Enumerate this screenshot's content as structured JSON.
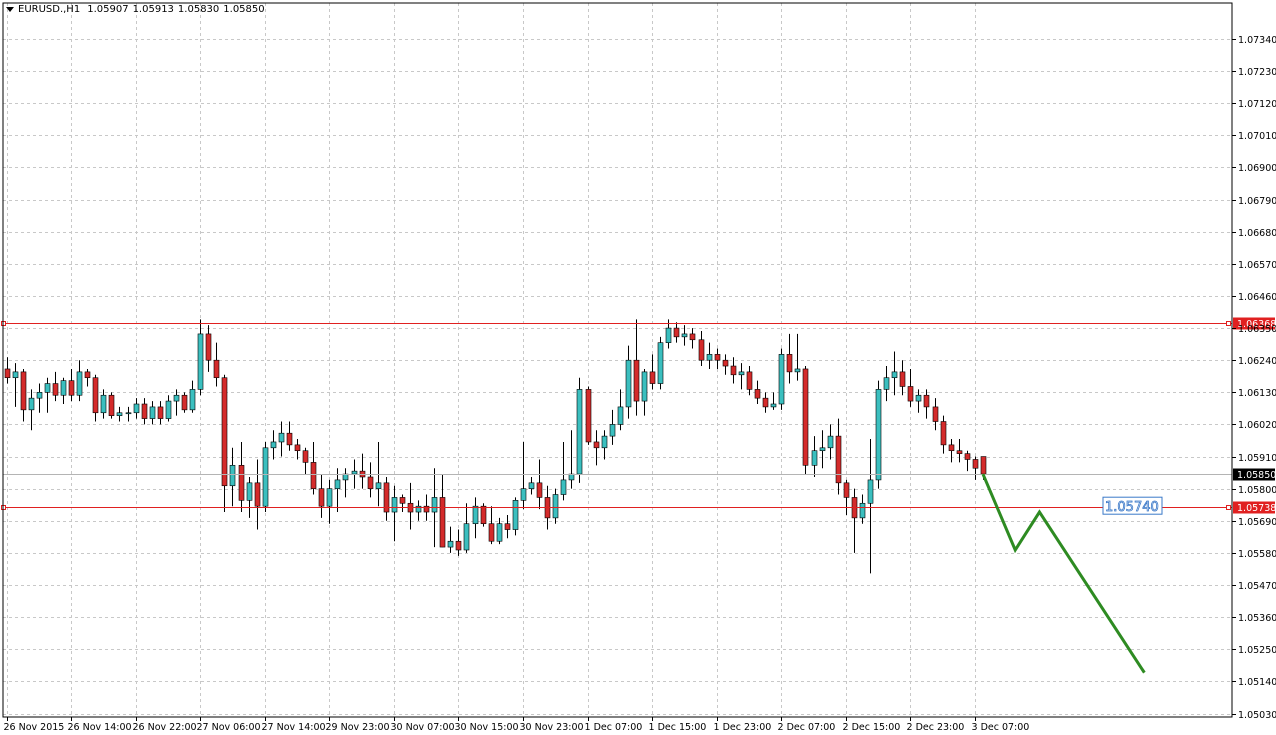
{
  "header": {
    "symbol": "EURUSD.,H1",
    "open": "1.05907",
    "high": "1.05913",
    "low": "1.05830",
    "close": "1.05850"
  },
  "colors": {
    "bull": "#3bbfbf",
    "bear": "#d42b2b",
    "wick": "#000000",
    "grid": "#c8c8c8",
    "level": "#e02020",
    "forecast": "#2e8b22",
    "target_box": "#3a78c8"
  },
  "chart_data": {
    "type": "candlestick",
    "symbol": "EURUSD.",
    "timeframe": "H1",
    "ylim": [
      1.0503,
      1.074
    ],
    "y_ticks": [
      "1.07340",
      "1.07230",
      "1.07120",
      "1.07010",
      "1.06900",
      "1.06790",
      "1.06680",
      "1.06570",
      "1.06460",
      "1.06350",
      "1.06240",
      "1.06130",
      "1.06020",
      "1.05910",
      "1.05800",
      "1.05690",
      "1.05580",
      "1.05470",
      "1.05360",
      "1.05250",
      "1.05140",
      "1.05030"
    ],
    "x_labels": [
      {
        "index": 0,
        "label": "26 Nov 2015"
      },
      {
        "index": 8,
        "label": "26 Nov 14:00"
      },
      {
        "index": 16,
        "label": "26 Nov 22:00"
      },
      {
        "index": 24,
        "label": "27 Nov 06:00"
      },
      {
        "index": 32,
        "label": "27 Nov 14:00"
      },
      {
        "index": 40,
        "label": "29 Nov 23:00"
      },
      {
        "index": 48,
        "label": "30 Nov 07:00"
      },
      {
        "index": 56,
        "label": "30 Nov 15:00"
      },
      {
        "index": 64,
        "label": "30 Nov 23:00"
      },
      {
        "index": 72,
        "label": "1 Dec 07:00"
      },
      {
        "index": 80,
        "label": "1 Dec 15:00"
      },
      {
        "index": 88,
        "label": "1 Dec 23:00"
      },
      {
        "index": 96,
        "label": "2 Dec 07:00"
      },
      {
        "index": 104,
        "label": "2 Dec 15:00"
      },
      {
        "index": 112,
        "label": "2 Dec 23:00"
      },
      {
        "index": 120,
        "label": "3 Dec 07:00"
      }
    ],
    "candles": [
      [
        1.0621,
        1.0625,
        1.0616,
        1.0618
      ],
      [
        1.0618,
        1.0623,
        1.0608,
        1.062
      ],
      [
        1.062,
        1.0621,
        1.0603,
        1.0607
      ],
      [
        1.0607,
        1.0614,
        1.06,
        1.0611
      ],
      [
        1.0611,
        1.0616,
        1.0606,
        1.0613
      ],
      [
        1.0613,
        1.0618,
        1.0606,
        1.0616
      ],
      [
        1.0616,
        1.062,
        1.061,
        1.0612
      ],
      [
        1.0612,
        1.0618,
        1.0609,
        1.0617
      ],
      [
        1.0617,
        1.0621,
        1.061,
        1.0612
      ],
      [
        1.0612,
        1.0624,
        1.061,
        1.062
      ],
      [
        1.062,
        1.0621,
        1.0615,
        1.0618
      ],
      [
        1.0618,
        1.0619,
        1.0603,
        1.0606
      ],
      [
        1.0606,
        1.0614,
        1.0604,
        1.0612
      ],
      [
        1.0612,
        1.0613,
        1.0604,
        1.0605
      ],
      [
        1.0605,
        1.0608,
        1.0603,
        1.0606
      ],
      [
        1.0606,
        1.0608,
        1.0603,
        1.0606
      ],
      [
        1.0606,
        1.0611,
        1.0604,
        1.0609
      ],
      [
        1.0609,
        1.0611,
        1.0602,
        1.0604
      ],
      [
        1.0604,
        1.061,
        1.0602,
        1.0608
      ],
      [
        1.0608,
        1.061,
        1.0602,
        1.0604
      ],
      [
        1.0604,
        1.0612,
        1.0603,
        1.061
      ],
      [
        1.061,
        1.0614,
        1.0605,
        1.0612
      ],
      [
        1.0612,
        1.0613,
        1.0606,
        1.0607
      ],
      [
        1.0607,
        1.0617,
        1.0606,
        1.0614
      ],
      [
        1.0614,
        1.0638,
        1.0612,
        1.0633
      ],
      [
        1.0633,
        1.0636,
        1.062,
        1.0624
      ],
      [
        1.0624,
        1.063,
        1.0615,
        1.0618
      ],
      [
        1.0618,
        1.0619,
        1.0572,
        1.0581
      ],
      [
        1.0581,
        1.0594,
        1.0574,
        1.0588
      ],
      [
        1.0588,
        1.0596,
        1.0572,
        1.0576
      ],
      [
        1.0576,
        1.0584,
        1.057,
        1.0582
      ],
      [
        1.0582,
        1.059,
        1.0566,
        1.0574
      ],
      [
        1.0574,
        1.0596,
        1.0572,
        1.0594
      ],
      [
        1.0594,
        1.06,
        1.059,
        1.0596
      ],
      [
        1.0596,
        1.0603,
        1.0591,
        1.0599
      ],
      [
        1.0599,
        1.0603,
        1.0593,
        1.0595
      ],
      [
        1.0595,
        1.0597,
        1.059,
        1.0593
      ],
      [
        1.0593,
        1.0594,
        1.0585,
        1.0589
      ],
      [
        1.0589,
        1.0596,
        1.0578,
        1.058
      ],
      [
        1.058,
        1.0585,
        1.057,
        1.0574
      ],
      [
        1.0574,
        1.0583,
        1.0568,
        1.058
      ],
      [
        1.058,
        1.0587,
        1.0572,
        1.0583
      ],
      [
        1.0583,
        1.0587,
        1.0577,
        1.0585
      ],
      [
        1.0585,
        1.059,
        1.058,
        1.0586
      ],
      [
        1.0586,
        1.0592,
        1.058,
        1.0584
      ],
      [
        1.0584,
        1.0589,
        1.0577,
        1.058
      ],
      [
        1.058,
        1.0596,
        1.0574,
        1.0582
      ],
      [
        1.0582,
        1.0584,
        1.0569,
        1.0572
      ],
      [
        1.0572,
        1.0581,
        1.0562,
        1.0577
      ],
      [
        1.0577,
        1.0578,
        1.0572,
        1.0575
      ],
      [
        1.0575,
        1.0582,
        1.0566,
        1.0572
      ],
      [
        1.0572,
        1.0576,
        1.0569,
        1.0574
      ],
      [
        1.0574,
        1.0578,
        1.0569,
        1.0572
      ],
      [
        1.0572,
        1.0587,
        1.056,
        1.0577
      ],
      [
        1.0577,
        1.0585,
        1.056,
        1.056
      ],
      [
        1.056,
        1.0567,
        1.0558,
        1.0562
      ],
      [
        1.0562,
        1.0566,
        1.0557,
        1.0559
      ],
      [
        1.0559,
        1.0575,
        1.0558,
        1.0568
      ],
      [
        1.0568,
        1.0577,
        1.0563,
        1.0574
      ],
      [
        1.0574,
        1.0575,
        1.0567,
        1.0568
      ],
      [
        1.0568,
        1.0574,
        1.0561,
        1.0562
      ],
      [
        1.0562,
        1.057,
        1.0561,
        1.0568
      ],
      [
        1.0568,
        1.0571,
        1.0563,
        1.0566
      ],
      [
        1.0566,
        1.0577,
        1.0564,
        1.0576
      ],
      [
        1.0576,
        1.0596,
        1.0573,
        1.058
      ],
      [
        1.058,
        1.0584,
        1.0578,
        1.0582
      ],
      [
        1.0582,
        1.059,
        1.0573,
        1.0577
      ],
      [
        1.0577,
        1.0581,
        1.0566,
        1.057
      ],
      [
        1.057,
        1.058,
        1.0568,
        1.0578
      ],
      [
        1.0578,
        1.0596,
        1.0576,
        1.0583
      ],
      [
        1.0583,
        1.06,
        1.058,
        1.0585
      ],
      [
        1.0585,
        1.0618,
        1.0582,
        1.0614
      ],
      [
        1.0614,
        1.0615,
        1.0595,
        1.0596
      ],
      [
        1.0596,
        1.06,
        1.0588,
        1.0594
      ],
      [
        1.0594,
        1.06,
        1.059,
        1.0598
      ],
      [
        1.0598,
        1.0607,
        1.0595,
        1.0602
      ],
      [
        1.0602,
        1.0614,
        1.06,
        1.0608
      ],
      [
        1.0608,
        1.0629,
        1.0604,
        1.0624
      ],
      [
        1.0624,
        1.0638,
        1.0605,
        1.061
      ],
      [
        1.061,
        1.0621,
        1.0605,
        1.062
      ],
      [
        1.062,
        1.0626,
        1.0614,
        1.0616
      ],
      [
        1.0616,
        1.0632,
        1.0614,
        1.063
      ],
      [
        1.063,
        1.0638,
        1.0628,
        1.0635
      ],
      [
        1.0635,
        1.0637,
        1.063,
        1.0632
      ],
      [
        1.0632,
        1.0636,
        1.0629,
        1.0633
      ],
      [
        1.0633,
        1.0635,
        1.0628,
        1.0631
      ],
      [
        1.0631,
        1.0634,
        1.0622,
        1.0624
      ],
      [
        1.0624,
        1.063,
        1.0621,
        1.0626
      ],
      [
        1.0626,
        1.0628,
        1.0621,
        1.0624
      ],
      [
        1.0624,
        1.0626,
        1.0619,
        1.0622
      ],
      [
        1.0622,
        1.0625,
        1.0616,
        1.0619
      ],
      [
        1.0619,
        1.0623,
        1.0614,
        1.062
      ],
      [
        1.062,
        1.0622,
        1.0612,
        1.0614
      ],
      [
        1.0614,
        1.0617,
        1.0609,
        1.0611
      ],
      [
        1.0611,
        1.0613,
        1.0606,
        1.0608
      ],
      [
        1.0608,
        1.0613,
        1.0607,
        1.0609
      ],
      [
        1.0609,
        1.0628,
        1.0607,
        1.0626
      ],
      [
        1.0626,
        1.0633,
        1.0616,
        1.062
      ],
      [
        1.062,
        1.0633,
        1.0617,
        1.0621
      ],
      [
        1.0621,
        1.0622,
        1.0585,
        1.0588
      ],
      [
        1.0588,
        1.0598,
        1.0584,
        1.0593
      ],
      [
        1.0593,
        1.06,
        1.0587,
        1.0594
      ],
      [
        1.0594,
        1.0602,
        1.059,
        1.0598
      ],
      [
        1.0598,
        1.0604,
        1.0578,
        1.0582
      ],
      [
        1.0582,
        1.0583,
        1.0571,
        1.0577
      ],
      [
        1.0577,
        1.058,
        1.0558,
        1.057
      ],
      [
        1.057,
        1.0578,
        1.0568,
        1.0575
      ],
      [
        1.0575,
        1.0597,
        1.0551,
        1.0583
      ],
      [
        1.0583,
        1.0617,
        1.058,
        1.0614
      ],
      [
        1.0614,
        1.0622,
        1.061,
        1.0618
      ],
      [
        1.0618,
        1.0627,
        1.0612,
        1.062
      ],
      [
        1.062,
        1.0624,
        1.0612,
        1.0615
      ],
      [
        1.0615,
        1.0621,
        1.0608,
        1.061
      ],
      [
        1.061,
        1.0614,
        1.0606,
        1.0612
      ],
      [
        1.0612,
        1.0614,
        1.0604,
        1.0608
      ],
      [
        1.0608,
        1.0611,
        1.06,
        1.0603
      ],
      [
        1.0603,
        1.0605,
        1.0592,
        1.0595
      ],
      [
        1.0595,
        1.0597,
        1.0589,
        1.0593
      ],
      [
        1.0593,
        1.0597,
        1.0589,
        1.0592
      ],
      [
        1.0592,
        1.0593,
        1.0586,
        1.059
      ],
      [
        1.059,
        1.0591,
        1.0583,
        1.0587
      ],
      [
        1.0591,
        1.0591,
        1.0583,
        1.0585
      ]
    ],
    "levels": [
      {
        "price": 1.06368,
        "label": "1.06368"
      },
      {
        "price": 1.05738,
        "label": "1.05738"
      }
    ],
    "current_price": {
      "price": 1.0585,
      "label": "1.05850"
    },
    "forecast_path": [
      {
        "index": 121,
        "price": 1.0585
      },
      {
        "index": 125,
        "price": 1.0559
      },
      {
        "index": 128,
        "price": 1.0572
      },
      {
        "index": 141,
        "price": 1.0517
      }
    ],
    "target": {
      "label": "1.05740",
      "price": 1.0574
    },
    "grid": true
  }
}
